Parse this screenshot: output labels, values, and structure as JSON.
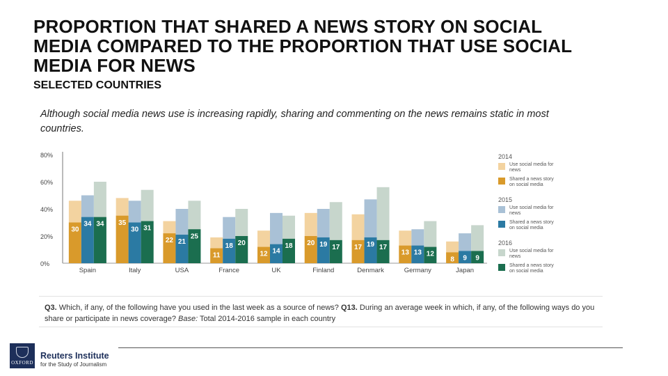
{
  "title": "PROPORTION THAT SHARED A NEWS STORY ON SOCIAL MEDIA COMPARED TO THE PROPORTION THAT USE SOCIAL MEDIA FOR NEWS",
  "subtitle": "SELECTED COUNTRIES",
  "intro": "Although social media news use is increasing rapidly, sharing and commenting on the news remains static in most countries.",
  "footnote": {
    "q3_label": "Q3.",
    "q3_text": " Which, if any, of the following have you used in the last week as a source of news? ",
    "q13_label": "Q13.",
    "q13_text": " During an average week in which, if any, of the following ways do you share or participate in news coverage? ",
    "base_label": "Base:",
    "base_text": " Total 2014-2016 sample in each country"
  },
  "brand": {
    "name": "Reuters Institute",
    "sub": "for the Study of Journalism",
    "logo_text": "OXFORD"
  },
  "chart_data": {
    "type": "bar",
    "categories": [
      "Spain",
      "Italy",
      "USA",
      "France",
      "UK",
      "Finland",
      "Denmark",
      "Germany",
      "Japan"
    ],
    "years": [
      "2014",
      "2015",
      "2016"
    ],
    "series": [
      {
        "name": "Use social media for news",
        "year": "2014",
        "values": [
          46,
          48,
          31,
          19,
          24,
          37,
          36,
          24,
          16
        ]
      },
      {
        "name": "Shared a news story on social media",
        "year": "2014",
        "values": [
          30,
          35,
          22,
          11,
          12,
          20,
          17,
          13,
          8
        ]
      },
      {
        "name": "Use social media for news",
        "year": "2015",
        "values": [
          50,
          46,
          40,
          34,
          37,
          40,
          47,
          25,
          22
        ]
      },
      {
        "name": "Shared a news story on social media",
        "year": "2015",
        "values": [
          34,
          30,
          21,
          18,
          14,
          19,
          19,
          13,
          9
        ]
      },
      {
        "name": "Use social media for news",
        "year": "2016",
        "values": [
          60,
          54,
          46,
          40,
          35,
          45,
          56,
          31,
          28
        ]
      },
      {
        "name": "Shared a news story on social media",
        "year": "2016",
        "values": [
          34,
          31,
          25,
          20,
          18,
          17,
          17,
          12,
          9
        ]
      }
    ],
    "y_ticks": [
      "0%",
      "20%",
      "40%",
      "60%",
      "80%"
    ],
    "ylim": [
      0,
      80
    ],
    "legend_placement": "right",
    "legend": [
      {
        "year": "2014",
        "items": [
          "Use social media for news",
          "Shared a news story on social media"
        ]
      },
      {
        "year": "2015",
        "items": [
          "Use social media for news",
          "Shared a news story on social media"
        ]
      },
      {
        "year": "2016",
        "items": [
          "Use social media for news",
          "Shared a news story on social media"
        ]
      }
    ],
    "colors": {
      "2014": {
        "use": "#f3d3a0",
        "shared": "#d99a2b"
      },
      "2015": {
        "use": "#a9c1d6",
        "shared": "#2b7aa3"
      },
      "2016": {
        "use": "#c7d6cc",
        "shared": "#1b6e4f"
      }
    },
    "grid": false
  }
}
